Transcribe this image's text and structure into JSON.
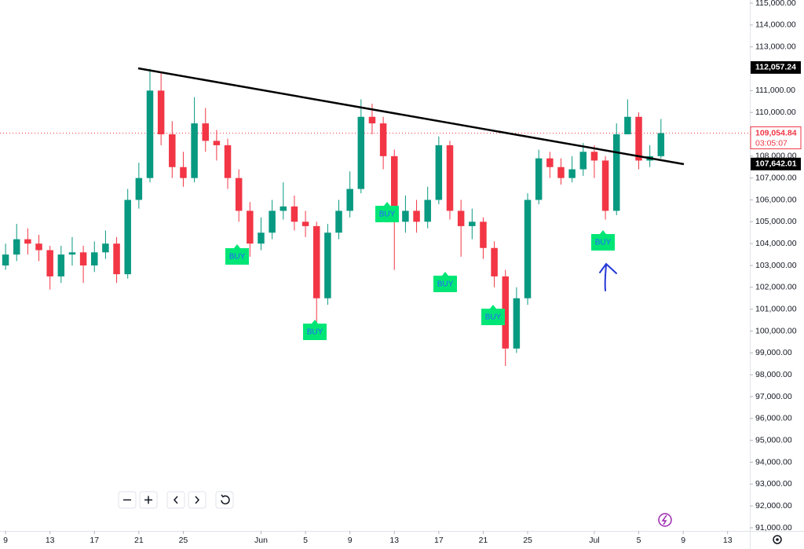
{
  "chart_data": {
    "type": "candlestick",
    "x": [
      0,
      1,
      2,
      3,
      4,
      5,
      6,
      7,
      8,
      9,
      10,
      11,
      12,
      13,
      14,
      15,
      16,
      17,
      18,
      19,
      20,
      21,
      22,
      23,
      24,
      25,
      26,
      27,
      28,
      29,
      30,
      31,
      32,
      33,
      34,
      35,
      36,
      37,
      38,
      39,
      40,
      41,
      42,
      43,
      44,
      45,
      46,
      47,
      48,
      49,
      50,
      51,
      52,
      53,
      54,
      55,
      56,
      57,
      58,
      59
    ],
    "open": [
      103000,
      103500,
      104200,
      104000,
      103700,
      102500,
      103500,
      103600,
      103000,
      103600,
      104000,
      102600,
      106000,
      107000,
      111000,
      109000,
      107500,
      107000,
      109500,
      108700,
      108500,
      107000,
      105500,
      104000,
      104500,
      105500,
      105700,
      105000,
      104800,
      101500,
      104500,
      105500,
      106500,
      109800,
      109500,
      108000,
      105000,
      105500,
      105000,
      106000,
      108500,
      105500,
      104800,
      105000,
      103800,
      102500,
      99200,
      101500,
      106000,
      107900,
      107500,
      107000,
      107400,
      108200,
      107800,
      105500,
      109000,
      109800,
      107800,
      108000
    ],
    "high": [
      104000,
      104900,
      104700,
      104400,
      103900,
      103900,
      104300,
      103900,
      104100,
      104600,
      104300,
      106500,
      107700,
      112000,
      111800,
      109600,
      108200,
      110700,
      110200,
      109200,
      108800,
      107400,
      105900,
      105200,
      106000,
      106800,
      106200,
      105500,
      105000,
      104900,
      106000,
      107300,
      110600,
      110400,
      109800,
      108300,
      106200,
      106000,
      106600,
      108900,
      108700,
      106000,
      105600,
      105200,
      104100,
      102800,
      102000,
      106300,
      108300,
      108200,
      107900,
      108000,
      108600,
      108500,
      108000,
      109500,
      110600,
      110000,
      108500,
      109700
    ],
    "low": [
      102800,
      103200,
      103500,
      103200,
      101900,
      102200,
      103000,
      102200,
      102700,
      103300,
      102200,
      102400,
      105600,
      106800,
      108500,
      107000,
      106600,
      106800,
      108200,
      107800,
      106500,
      105000,
      103400,
      103700,
      104200,
      105100,
      104600,
      104300,
      100400,
      101200,
      104200,
      105200,
      106300,
      109000,
      107400,
      102800,
      104500,
      104500,
      104700,
      105800,
      105100,
      103400,
      104200,
      103300,
      102000,
      98400,
      99000,
      101200,
      105800,
      107000,
      106700,
      106800,
      107100,
      107000,
      105100,
      105300,
      109000,
      107400,
      107500,
      107900
    ],
    "close": [
      103500,
      104200,
      104000,
      103700,
      102500,
      103500,
      103600,
      103000,
      103600,
      104000,
      102600,
      106000,
      107000,
      111000,
      109000,
      107500,
      107000,
      109500,
      108700,
      108500,
      107000,
      105500,
      104000,
      104500,
      105500,
      105700,
      105000,
      104800,
      101500,
      104500,
      105500,
      106500,
      109800,
      109500,
      108000,
      105000,
      105500,
      105000,
      106000,
      108500,
      105500,
      104800,
      105000,
      103800,
      102500,
      99200,
      101500,
      106000,
      107900,
      107500,
      107000,
      107400,
      108200,
      107800,
      105500,
      109000,
      109800,
      107800,
      108000,
      109054.84
    ],
    "up_color": "#089981",
    "down_color": "#f23645",
    "xlim": [
      -0.5,
      67
    ],
    "xticks": [
      {
        "value": 0,
        "label": "9"
      },
      {
        "value": 4,
        "label": "13"
      },
      {
        "value": 8,
        "label": "17"
      },
      {
        "value": 12,
        "label": "21"
      },
      {
        "value": 16,
        "label": "25"
      },
      {
        "value": 23,
        "label": "Jun"
      },
      {
        "value": 27,
        "label": "5"
      },
      {
        "value": 31,
        "label": "9"
      },
      {
        "value": 35,
        "label": "13"
      },
      {
        "value": 39,
        "label": "17"
      },
      {
        "value": 43,
        "label": "21"
      },
      {
        "value": 47,
        "label": "25"
      },
      {
        "value": 53,
        "label": "Jul"
      },
      {
        "value": 57,
        "label": "5"
      },
      {
        "value": 61,
        "label": "9"
      },
      {
        "value": 65,
        "label": "13"
      }
    ],
    "ylim": [
      90856,
      115144
    ],
    "yticks": [
      {
        "value": 91000,
        "label": "91,000.00"
      },
      {
        "value": 92000,
        "label": "92,000.00"
      },
      {
        "value": 93000,
        "label": "93,000.00"
      },
      {
        "value": 94000,
        "label": "94,000.00"
      },
      {
        "value": 95000,
        "label": "95,000.00"
      },
      {
        "value": 96000,
        "label": "96,000.00"
      },
      {
        "value": 97000,
        "label": "97,000.00"
      },
      {
        "value": 98000,
        "label": "98,000.00"
      },
      {
        "value": 99000,
        "label": "99,000.00"
      },
      {
        "value": 100000,
        "label": "100,000.00"
      },
      {
        "value": 101000,
        "label": "101,000.00"
      },
      {
        "value": 102000,
        "label": "102,000.00"
      },
      {
        "value": 103000,
        "label": "103,000.00"
      },
      {
        "value": 104000,
        "label": "104,000.00"
      },
      {
        "value": 105000,
        "label": "105,000.00"
      },
      {
        "value": 106000,
        "label": "106,000.00"
      },
      {
        "value": 107000,
        "label": "107,000.00"
      },
      {
        "value": 108000,
        "label": "108,000.00"
      },
      {
        "value": 109000,
        "label": "109,000.00"
      },
      {
        "value": 110000,
        "label": "110,000.00"
      },
      {
        "value": 111000,
        "label": "111,000.00"
      },
      {
        "value": 112000,
        "label": "112,000.00"
      },
      {
        "value": 113000,
        "label": "113,000.00"
      },
      {
        "value": 114000,
        "label": "114,000.00"
      },
      {
        "value": 115000,
        "label": "115,000.00"
      }
    ],
    "last_price": {
      "value": 109054.84,
      "label": "109,054.84"
    },
    "countdown": "03:05:07",
    "price_markers": [
      {
        "value": 112057.24,
        "label": "112,057.24"
      },
      {
        "value": 107642.01,
        "label": "107,642.01"
      }
    ],
    "signals": [
      "BUY",
      "BUY",
      "BUY",
      "BUY",
      "BUY",
      "BUY"
    ]
  }
}
